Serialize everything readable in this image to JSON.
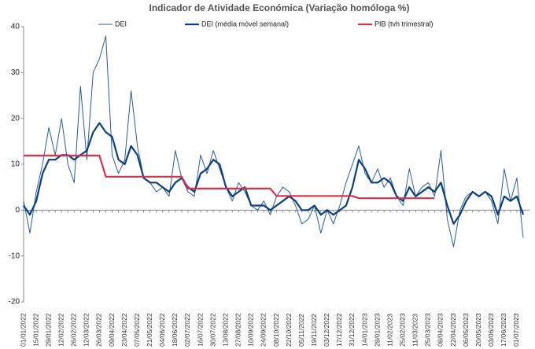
{
  "chart_data": {
    "type": "line",
    "title": "Indicador de Atividade Económica (Variação homóloga %)",
    "legend": "top",
    "categories": [
      "01/01/2022",
      null,
      "15/01/2022",
      null,
      "29/01/2022",
      null,
      "12/02/2022",
      null,
      "26/02/2022",
      null,
      "12/03/2022",
      null,
      "26/03/2022",
      null,
      "09/04/2022",
      null,
      "23/04/2022",
      null,
      "07/05/2022",
      null,
      "21/05/2022",
      null,
      "04/06/2022",
      null,
      "18/06/2022",
      null,
      "02/07/2022",
      null,
      "16/07/2022",
      null,
      "30/07/2022",
      null,
      "13/08/2022",
      null,
      "27/08/2022",
      null,
      "10/09/2022",
      null,
      "24/09/2022",
      null,
      "08/10/2022",
      null,
      "22/10/2022",
      null,
      "05/11/2022",
      null,
      "19/11/2022",
      null,
      "03/12/2022",
      null,
      "17/12/2022",
      null,
      "31/12/2022",
      null,
      "14/01/2023",
      null,
      "28/01/2023",
      null,
      "11/02/2023",
      null,
      "25/02/2023",
      null,
      "11/03/2023",
      null,
      "25/03/2023",
      null,
      "08/04/2023",
      null,
      "22/04/2023",
      null,
      "06/05/2023",
      null,
      "20/05/2023",
      null,
      "03/06/2023",
      null,
      "17/06/2023",
      null,
      "01/07/2023",
      null
    ],
    "series": [
      {
        "name": "DEI",
        "color": "#2a5b9b",
        "width": 1,
        "values": [
          2,
          -5,
          4,
          10,
          18,
          12,
          20,
          10,
          6,
          27,
          11,
          30,
          33,
          38,
          12,
          8,
          11,
          26,
          14,
          7,
          6,
          4,
          5,
          3,
          13,
          7,
          4,
          3,
          12,
          8,
          13,
          9,
          5,
          2,
          6,
          4,
          1,
          0,
          2,
          -1,
          3,
          5,
          4,
          1,
          -3,
          -2,
          1,
          -5,
          0,
          -3,
          1,
          6,
          10,
          14,
          8,
          6,
          9,
          5,
          7,
          3,
          1,
          9,
          3,
          5,
          6,
          3,
          13,
          -2,
          -8,
          0,
          3,
          4,
          3,
          4,
          2,
          -3,
          9,
          2,
          7,
          -6
        ]
      },
      {
        "name": "DEI (média móvel semanal)",
        "color": "#0b3f7f",
        "width": 2.2,
        "values": [
          1,
          -1,
          2,
          8,
          11,
          11,
          12,
          12,
          11,
          12,
          13,
          17,
          19,
          17,
          16,
          11,
          10,
          14,
          12,
          7,
          6,
          6,
          5,
          4,
          6,
          7,
          5,
          4,
          8,
          9,
          11,
          10,
          5,
          3,
          4,
          5,
          1,
          1,
          1,
          0,
          1,
          2,
          3,
          2,
          0,
          0,
          1,
          -1,
          0,
          -1,
          0,
          1,
          5,
          11,
          9,
          6,
          6,
          7,
          6,
          3,
          2,
          5,
          3,
          4,
          5,
          4,
          6,
          1,
          -3,
          -1,
          2,
          4,
          3,
          4,
          3,
          -1,
          3,
          2,
          3,
          -1
        ]
      },
      {
        "name": "PIB (tvh trimestral)",
        "color": "#d6334b",
        "width": 2.2,
        "values": [
          11.9,
          11.9,
          11.9,
          11.9,
          11.9,
          11.9,
          11.9,
          11.9,
          11.9,
          11.9,
          11.9,
          11.9,
          11.9,
          7.3,
          7.3,
          7.3,
          7.3,
          7.3,
          7.3,
          7.3,
          7.3,
          7.3,
          7.3,
          7.3,
          7.3,
          7.3,
          4.7,
          4.7,
          4.7,
          4.7,
          4.7,
          4.7,
          4.7,
          4.7,
          4.7,
          4.7,
          4.7,
          4.7,
          4.7,
          4.7,
          3.1,
          3.1,
          3.1,
          3.1,
          3.1,
          3.1,
          3.1,
          3.1,
          3.1,
          3.1,
          3.1,
          3.1,
          3.1,
          2.6,
          2.6,
          2.6,
          2.6,
          2.6,
          2.6,
          2.6,
          2.6,
          2.6,
          2.6,
          2.6,
          2.6,
          2.6,
          null,
          null,
          null,
          null,
          null,
          null,
          null,
          null,
          null,
          null,
          null,
          null,
          null,
          null
        ]
      }
    ],
    "ylim": [
      -20,
      40
    ],
    "yticks": [
      -20,
      -10,
      0,
      10,
      20,
      30,
      40
    ]
  }
}
